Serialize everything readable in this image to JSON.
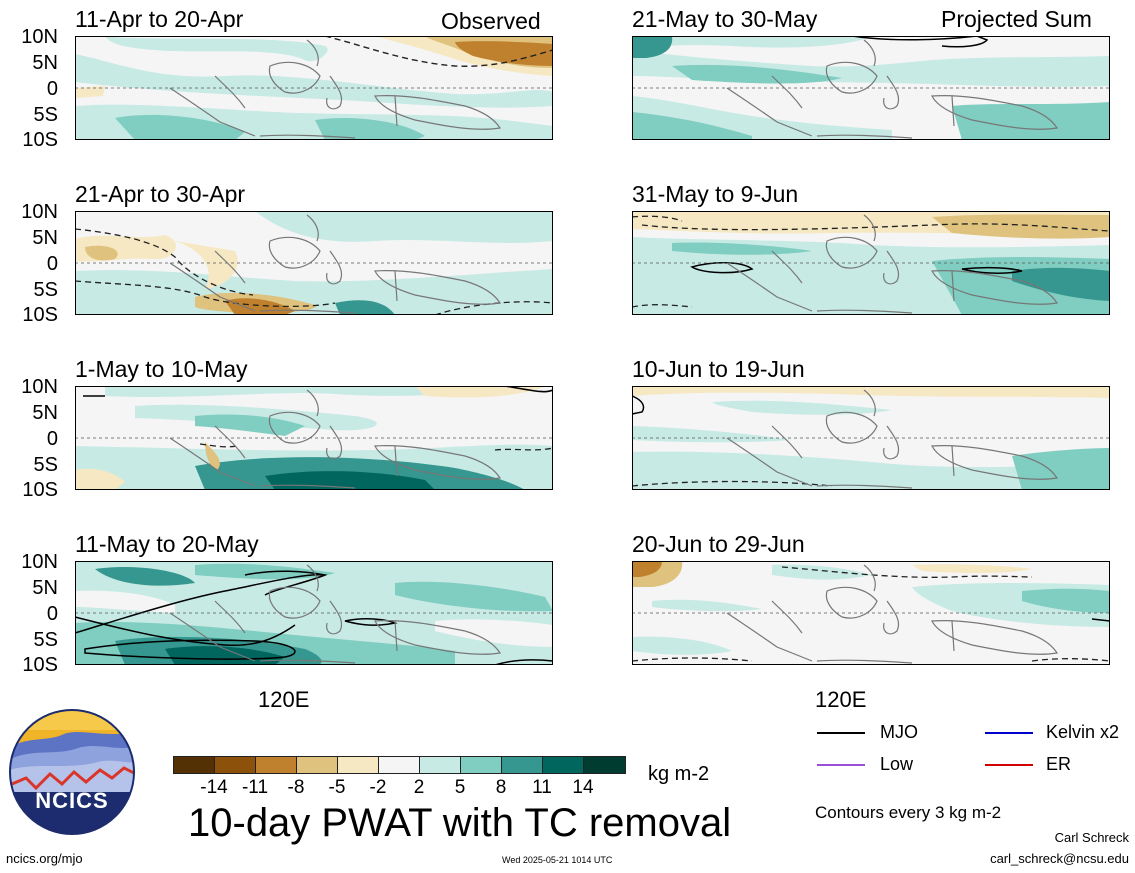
{
  "panels": [
    {
      "title": "11-Apr to 20-Apr",
      "tag": "Observed"
    },
    {
      "title": "21-Apr to 30-Apr",
      "tag": ""
    },
    {
      "title": "1-May to 10-May",
      "tag": ""
    },
    {
      "title": "11-May to 20-May",
      "tag": ""
    },
    {
      "title": "21-May to 30-May",
      "tag": "Projected Sum"
    },
    {
      "title": "31-May to 9-Jun",
      "tag": ""
    },
    {
      "title": "10-Jun to 19-Jun",
      "tag": ""
    },
    {
      "title": "20-Jun to 29-Jun",
      "tag": ""
    }
  ],
  "lat_labels": [
    "10N",
    "5N",
    "0",
    "5S",
    "10S"
  ],
  "lon_label": "120E",
  "colorbar": {
    "colors": [
      "#543005",
      "#8c510a",
      "#bf812d",
      "#dfc27d",
      "#f6e8c3",
      "#f5f5f5",
      "#c7eae5",
      "#80cdc1",
      "#35978f",
      "#01665e",
      "#003c30"
    ],
    "labels": [
      "-14",
      "-11",
      "-8",
      "-5",
      "-2",
      "2",
      "5",
      "8",
      "11",
      "14"
    ],
    "units": "kg m-2"
  },
  "main_title": "10-day PWAT with TC removal",
  "legend": {
    "items": [
      {
        "label": "MJO",
        "color": "#000000"
      },
      {
        "label": "Kelvin x2",
        "color": "#0000cc"
      },
      {
        "label": "Low",
        "color": "#9a4fd6"
      },
      {
        "label": "ER",
        "color": "#d00000"
      }
    ],
    "contour_note": "Contours every 3 kg m-2"
  },
  "logo": {
    "text": "NCICS"
  },
  "footer": {
    "url": "ncics.org/mjo",
    "timestamp": "Wed 2025-05-21 1014 UTC",
    "author": "Carl Schreck",
    "email": "carl_schreck@ncsu.edu"
  }
}
